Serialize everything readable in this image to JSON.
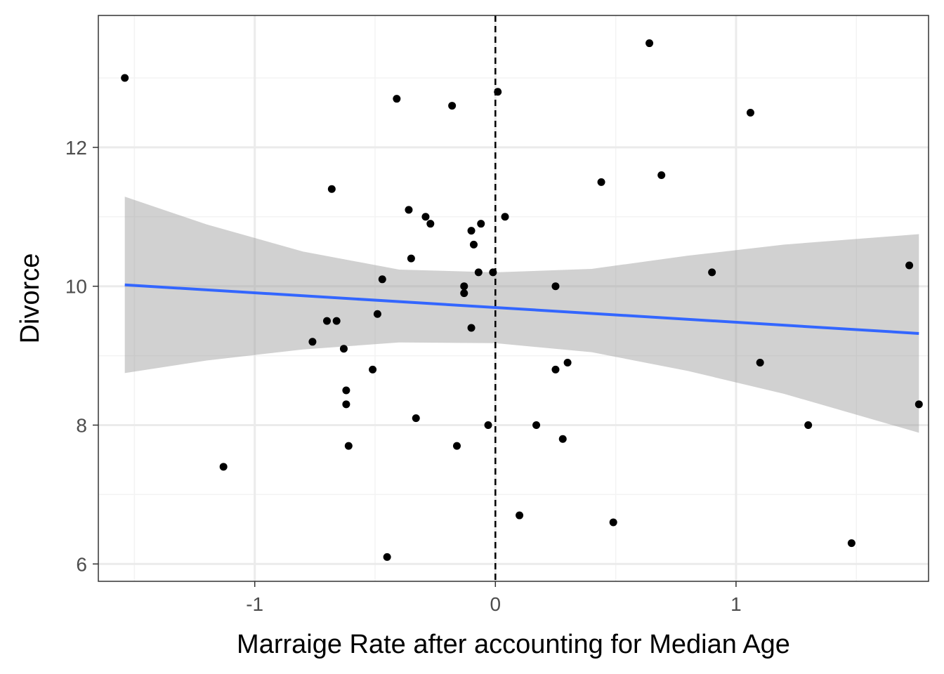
{
  "chart_data": {
    "type": "scatter",
    "title": "",
    "xlabel": "Marraige Rate after accounting for Median Age",
    "ylabel": "Divorce",
    "xlim": [
      -1.65,
      1.8
    ],
    "ylim": [
      5.75,
      13.9
    ],
    "x_ticks": [
      -1,
      0,
      1
    ],
    "x_tick_labels": [
      "-1",
      "0",
      "1"
    ],
    "y_ticks": [
      6,
      8,
      10,
      12
    ],
    "y_tick_labels": [
      "6",
      "8",
      "10",
      "12"
    ],
    "grid": true,
    "theme": "bw",
    "vline_x": 0,
    "points": [
      {
        "x": -1.54,
        "y": 13.0
      },
      {
        "x": -1.13,
        "y": 7.4
      },
      {
        "x": -0.76,
        "y": 9.2
      },
      {
        "x": -0.7,
        "y": 9.5
      },
      {
        "x": -0.68,
        "y": 11.4
      },
      {
        "x": -0.66,
        "y": 9.5
      },
      {
        "x": -0.63,
        "y": 9.1
      },
      {
        "x": -0.62,
        "y": 8.5
      },
      {
        "x": -0.62,
        "y": 8.3
      },
      {
        "x": -0.61,
        "y": 7.7
      },
      {
        "x": -0.51,
        "y": 8.8
      },
      {
        "x": -0.49,
        "y": 9.6
      },
      {
        "x": -0.47,
        "y": 10.1
      },
      {
        "x": -0.45,
        "y": 6.1
      },
      {
        "x": -0.41,
        "y": 12.7
      },
      {
        "x": -0.36,
        "y": 11.1
      },
      {
        "x": -0.35,
        "y": 10.4
      },
      {
        "x": -0.33,
        "y": 8.1
      },
      {
        "x": -0.29,
        "y": 11.0
      },
      {
        "x": -0.27,
        "y": 10.9
      },
      {
        "x": -0.18,
        "y": 12.6
      },
      {
        "x": -0.16,
        "y": 7.7
      },
      {
        "x": -0.13,
        "y": 10.0
      },
      {
        "x": -0.13,
        "y": 9.9
      },
      {
        "x": -0.1,
        "y": 10.8
      },
      {
        "x": -0.1,
        "y": 9.4
      },
      {
        "x": -0.09,
        "y": 10.6
      },
      {
        "x": -0.07,
        "y": 10.2
      },
      {
        "x": -0.06,
        "y": 10.9
      },
      {
        "x": -0.03,
        "y": 8.0
      },
      {
        "x": -0.01,
        "y": 10.2
      },
      {
        "x": 0.01,
        "y": 12.8
      },
      {
        "x": 0.04,
        "y": 11.0
      },
      {
        "x": 0.1,
        "y": 6.7
      },
      {
        "x": 0.17,
        "y": 8.0
      },
      {
        "x": 0.25,
        "y": 8.8
      },
      {
        "x": 0.25,
        "y": 10.0
      },
      {
        "x": 0.28,
        "y": 7.8
      },
      {
        "x": 0.3,
        "y": 8.9
      },
      {
        "x": 0.44,
        "y": 11.5
      },
      {
        "x": 0.49,
        "y": 6.6
      },
      {
        "x": 0.64,
        "y": 13.5
      },
      {
        "x": 0.69,
        "y": 11.6
      },
      {
        "x": 0.9,
        "y": 10.2
      },
      {
        "x": 1.06,
        "y": 12.5
      },
      {
        "x": 1.1,
        "y": 8.9
      },
      {
        "x": 1.3,
        "y": 8.0
      },
      {
        "x": 1.48,
        "y": 6.3
      },
      {
        "x": 1.72,
        "y": 10.3
      },
      {
        "x": 1.76,
        "y": 8.3
      }
    ],
    "fit_line": {
      "x": [
        -1.54,
        1.76
      ],
      "y": [
        10.02,
        9.32
      ]
    },
    "confidence_band": {
      "x": [
        -1.54,
        -1.2,
        -0.8,
        -0.4,
        0,
        0.4,
        0.8,
        1.2,
        1.76
      ],
      "lower": [
        8.75,
        8.93,
        9.09,
        9.19,
        9.18,
        9.05,
        8.78,
        8.45,
        7.89
      ],
      "upper": [
        11.29,
        10.89,
        10.5,
        10.24,
        10.2,
        10.25,
        10.44,
        10.6,
        10.75
      ]
    },
    "colors": {
      "point": "#000000",
      "fit_line": "#3366ff",
      "band": "#999999",
      "grid_major": "#ebebeb",
      "grid_minor": "#f3f3f3",
      "panel_border": "#333333",
      "vline": "#000000"
    }
  }
}
